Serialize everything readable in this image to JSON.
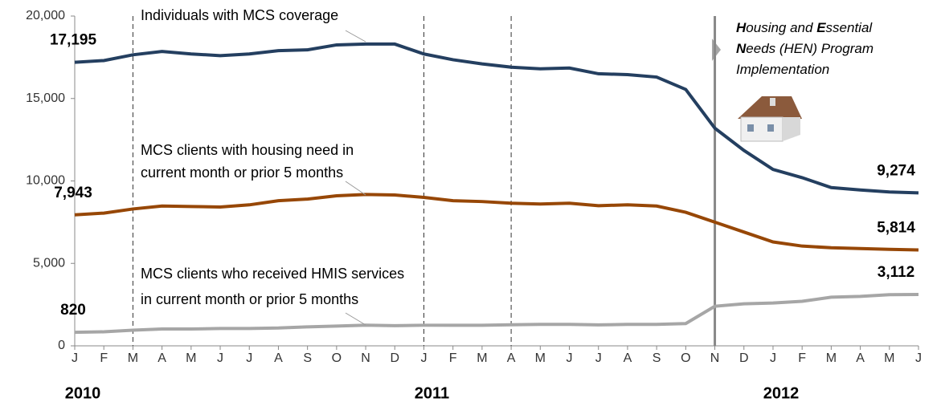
{
  "chart_data": {
    "type": "line",
    "categories": [
      "J",
      "F",
      "M",
      "A",
      "M",
      "J",
      "J",
      "A",
      "S",
      "O",
      "N",
      "D",
      "J",
      "F",
      "M",
      "A",
      "M",
      "J",
      "J",
      "A",
      "S",
      "O",
      "N",
      "D",
      "J",
      "F",
      "M",
      "A",
      "M",
      "J"
    ],
    "years": [
      "2010",
      "2011",
      "2012"
    ],
    "series": [
      {
        "name": "Individuals with MCS coverage",
        "color": "#243f60",
        "values": [
          17195,
          17300,
          17650,
          17850,
          17700,
          17600,
          17700,
          17900,
          17950,
          18250,
          18300,
          18300,
          17700,
          17350,
          17100,
          16900,
          16800,
          16850,
          16500,
          16450,
          16300,
          15550,
          13200,
          11850,
          10700,
          10200,
          9600,
          9450,
          9330,
          9274
        ],
        "value_labels": [
          "17,195",
          null,
          null,
          null,
          null,
          null,
          null,
          null,
          null,
          null,
          null,
          null,
          null,
          null,
          null,
          null,
          null,
          null,
          null,
          null,
          null,
          null,
          null,
          null,
          null,
          null,
          null,
          null,
          null,
          "9,274"
        ]
      },
      {
        "name": [
          "MCS clients with housing need in",
          "current month or prior 5 months"
        ],
        "color": "#974706",
        "values": [
          7943,
          8050,
          8300,
          8480,
          8450,
          8420,
          8550,
          8800,
          8900,
          9100,
          9180,
          9150,
          9000,
          8800,
          8750,
          8650,
          8600,
          8650,
          8500,
          8550,
          8480,
          8100,
          7500,
          6900,
          6300,
          6050,
          5950,
          5900,
          5850,
          5814
        ],
        "value_labels": [
          "7,943",
          null,
          null,
          null,
          null,
          null,
          null,
          null,
          null,
          null,
          null,
          null,
          null,
          null,
          null,
          null,
          null,
          null,
          null,
          null,
          null,
          null,
          null,
          null,
          null,
          null,
          null,
          null,
          null,
          "5,814"
        ]
      },
      {
        "name": [
          "MCS clients who received HMIS services",
          "in current month or prior 5 months"
        ],
        "color": "#a6a6a6",
        "values": [
          820,
          850,
          950,
          1020,
          1020,
          1050,
          1050,
          1080,
          1150,
          1200,
          1250,
          1220,
          1250,
          1250,
          1250,
          1280,
          1300,
          1300,
          1270,
          1300,
          1300,
          1350,
          2400,
          2550,
          2600,
          2700,
          2950,
          3000,
          3100,
          3112
        ],
        "value_labels": [
          "820",
          null,
          null,
          null,
          null,
          null,
          null,
          null,
          null,
          null,
          null,
          null,
          null,
          null,
          null,
          null,
          null,
          null,
          null,
          null,
          null,
          null,
          null,
          null,
          null,
          null,
          null,
          null,
          null,
          "3,112"
        ]
      }
    ],
    "ylim": [
      0,
      20000
    ],
    "yticks": [
      0,
      {
        "value": 5000,
        "label": "5,000"
      },
      {
        "value": 10000,
        "label": "10,000"
      },
      {
        "value": 15000,
        "label": "15,000"
      },
      {
        "value": 20000,
        "label": "20,000"
      }
    ],
    "vlines": [
      {
        "x": 2,
        "style": "dashed"
      },
      {
        "x": 12,
        "style": "dashed"
      },
      {
        "x": 15,
        "style": "dashed"
      },
      {
        "x": 22,
        "style": "solid"
      }
    ],
    "annotation": [
      [
        {
          "text": "H",
          "bold": true
        },
        {
          "text": "ousing and "
        },
        {
          "text": "E",
          "bold": true
        },
        {
          "text": "ssential"
        }
      ],
      [
        {
          "text": "N",
          "bold": true
        },
        {
          "text": "eeds (HEN) Program"
        }
      ],
      [
        {
          "text": "Implementation"
        }
      ]
    ]
  }
}
